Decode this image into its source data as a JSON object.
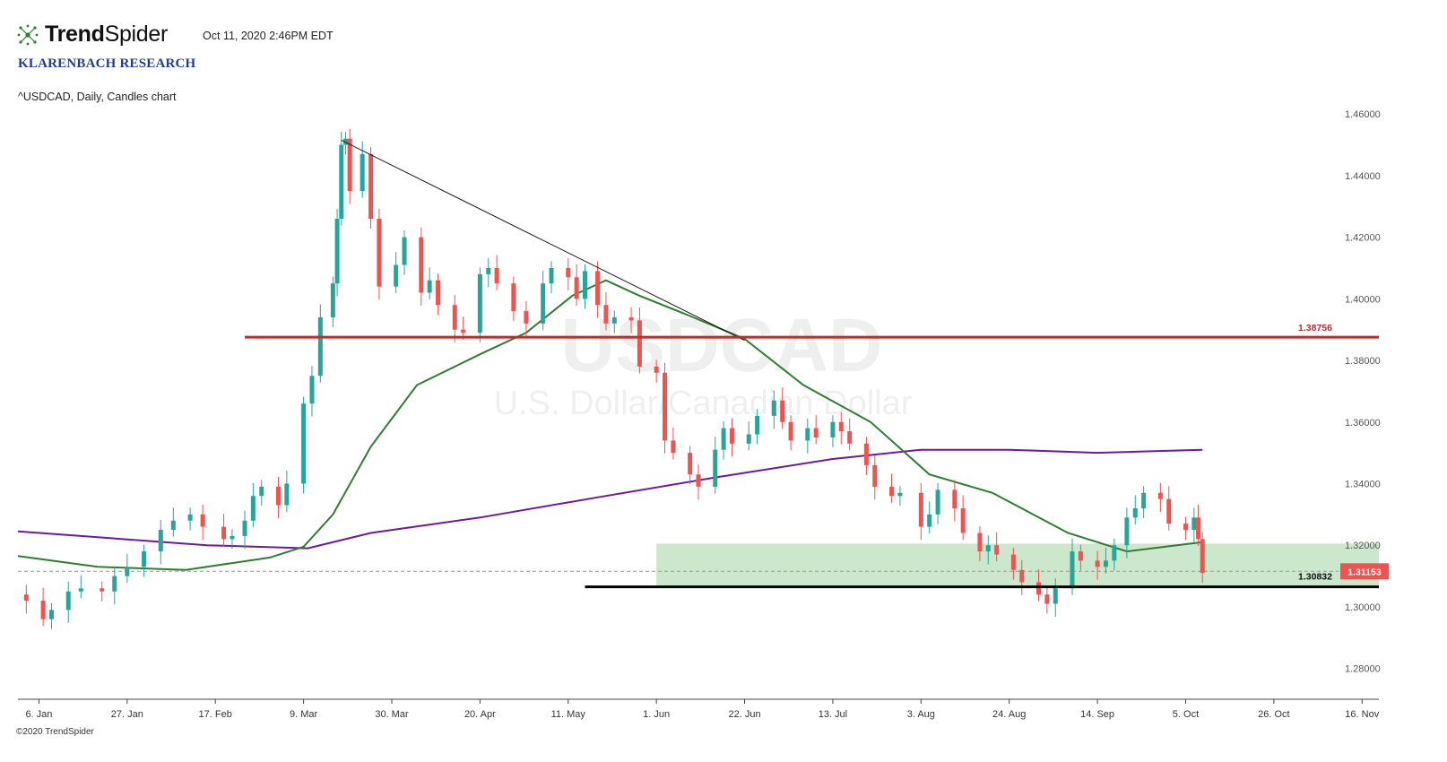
{
  "header": {
    "brand_trend": "Trend",
    "brand_spider": "Spider",
    "timestamp": "Oct 11, 2020 2:46PM EDT",
    "research": "KLARENBACH RESEARCH",
    "chart_desc": "^USDCAD, Daily, Candles chart"
  },
  "watermark": {
    "symbol": "USDCAD",
    "name": "U.S. Dollar/Canadian Dollar"
  },
  "footer": {
    "copyright": "©2020 TrendSpider"
  },
  "colors": {
    "up": "#26a69a",
    "down": "#ef5350",
    "ma_green": "#2e7d32",
    "ma_purple": "#6a1b9a",
    "resistance": "#c62828",
    "support": "#000000",
    "zone": "#c8e6c9",
    "price_tag": "#ef5350",
    "brand_icon": "#2e7d32"
  },
  "chart_data": {
    "type": "candlestick",
    "symbol": "^USDCAD",
    "timeframe": "Daily",
    "ylim": [
      1.27,
      1.465
    ],
    "xlim": [
      "2020-01-01",
      "2020-11-20"
    ],
    "y_ticks": [
      "1.46000",
      "1.44000",
      "1.42000",
      "1.40000",
      "1.38000",
      "1.36000",
      "1.34000",
      "1.32000",
      "1.30000",
      "1.28000"
    ],
    "x_ticks": [
      {
        "label": "6. Jan",
        "date": "2020-01-06"
      },
      {
        "label": "27. Jan",
        "date": "2020-01-27"
      },
      {
        "label": "17. Feb",
        "date": "2020-02-17"
      },
      {
        "label": "9. Mar",
        "date": "2020-03-09"
      },
      {
        "label": "30. Mar",
        "date": "2020-03-30"
      },
      {
        "label": "20. Apr",
        "date": "2020-04-20"
      },
      {
        "label": "11. May",
        "date": "2020-05-11"
      },
      {
        "label": "1. Jun",
        "date": "2020-06-01"
      },
      {
        "label": "22. Jun",
        "date": "2020-06-22"
      },
      {
        "label": "13. Jul",
        "date": "2020-07-13"
      },
      {
        "label": "3. Aug",
        "date": "2020-08-03"
      },
      {
        "label": "24. Aug",
        "date": "2020-08-24"
      },
      {
        "label": "14. Sep",
        "date": "2020-09-14"
      },
      {
        "label": "5. Oct",
        "date": "2020-10-05"
      },
      {
        "label": "26. Oct",
        "date": "2020-10-26"
      },
      {
        "label": "16. Nov",
        "date": "2020-11-16"
      }
    ],
    "close_series": [
      [
        "2020-01-01",
        1.304
      ],
      [
        "2020-01-03",
        1.302
      ],
      [
        "2020-01-07",
        1.296
      ],
      [
        "2020-01-09",
        1.299
      ],
      [
        "2020-01-13",
        1.305
      ],
      [
        "2020-01-16",
        1.306
      ],
      [
        "2020-01-21",
        1.305
      ],
      [
        "2020-01-24",
        1.31
      ],
      [
        "2020-01-27",
        1.313
      ],
      [
        "2020-01-31",
        1.318
      ],
      [
        "2020-02-04",
        1.325
      ],
      [
        "2020-02-07",
        1.328
      ],
      [
        "2020-02-11",
        1.33
      ],
      [
        "2020-02-14",
        1.326
      ],
      [
        "2020-02-19",
        1.322
      ],
      [
        "2020-02-21",
        1.323
      ],
      [
        "2020-02-24",
        1.328
      ],
      [
        "2020-02-26",
        1.336
      ],
      [
        "2020-02-28",
        1.339
      ],
      [
        "2020-03-03",
        1.333
      ],
      [
        "2020-03-05",
        1.34
      ],
      [
        "2020-03-09",
        1.366
      ],
      [
        "2020-03-11",
        1.375
      ],
      [
        "2020-03-13",
        1.394
      ],
      [
        "2020-03-16",
        1.405
      ],
      [
        "2020-03-17",
        1.426
      ],
      [
        "2020-03-18",
        1.45
      ],
      [
        "2020-03-19",
        1.452
      ],
      [
        "2020-03-20",
        1.435
      ],
      [
        "2020-03-23",
        1.447
      ],
      [
        "2020-03-25",
        1.426
      ],
      [
        "2020-03-27",
        1.404
      ],
      [
        "2020-03-31",
        1.411
      ],
      [
        "2020-04-02",
        1.42
      ],
      [
        "2020-04-06",
        1.402
      ],
      [
        "2020-04-08",
        1.406
      ],
      [
        "2020-04-10",
        1.398
      ],
      [
        "2020-04-14",
        1.39
      ],
      [
        "2020-04-16",
        1.389
      ],
      [
        "2020-04-20",
        1.408
      ],
      [
        "2020-04-22",
        1.41
      ],
      [
        "2020-04-24",
        1.405
      ],
      [
        "2020-04-28",
        1.396
      ],
      [
        "2020-05-01",
        1.392
      ],
      [
        "2020-05-05",
        1.405
      ],
      [
        "2020-05-07",
        1.41
      ],
      [
        "2020-05-11",
        1.407
      ],
      [
        "2020-05-13",
        1.4
      ],
      [
        "2020-05-15",
        1.409
      ],
      [
        "2020-05-18",
        1.398
      ],
      [
        "2020-05-20",
        1.392
      ],
      [
        "2020-05-22",
        1.394
      ],
      [
        "2020-05-26",
        1.393
      ],
      [
        "2020-05-28",
        1.378
      ],
      [
        "2020-06-01",
        1.376
      ],
      [
        "2020-06-03",
        1.354
      ],
      [
        "2020-06-05",
        1.35
      ],
      [
        "2020-06-09",
        1.343
      ],
      [
        "2020-06-11",
        1.339
      ],
      [
        "2020-06-15",
        1.351
      ],
      [
        "2020-06-17",
        1.358
      ],
      [
        "2020-06-19",
        1.353
      ],
      [
        "2020-06-23",
        1.356
      ],
      [
        "2020-06-25",
        1.362
      ],
      [
        "2020-06-29",
        1.367
      ],
      [
        "2020-07-01",
        1.36
      ],
      [
        "2020-07-03",
        1.354
      ],
      [
        "2020-07-07",
        1.358
      ],
      [
        "2020-07-09",
        1.355
      ],
      [
        "2020-07-13",
        1.36
      ],
      [
        "2020-07-15",
        1.357
      ],
      [
        "2020-07-17",
        1.353
      ],
      [
        "2020-07-21",
        1.346
      ],
      [
        "2020-07-23",
        1.339
      ],
      [
        "2020-07-27",
        1.336
      ],
      [
        "2020-07-29",
        1.337
      ],
      [
        "2020-08-03",
        1.326
      ],
      [
        "2020-08-05",
        1.33
      ],
      [
        "2020-08-07",
        1.338
      ],
      [
        "2020-08-11",
        1.332
      ],
      [
        "2020-08-13",
        1.324
      ],
      [
        "2020-08-17",
        1.318
      ],
      [
        "2020-08-19",
        1.32
      ],
      [
        "2020-08-21",
        1.317
      ],
      [
        "2020-08-25",
        1.312
      ],
      [
        "2020-08-27",
        1.308
      ],
      [
        "2020-08-31",
        1.304
      ],
      [
        "2020-09-02",
        1.301
      ],
      [
        "2020-09-04",
        1.306
      ],
      [
        "2020-09-08",
        1.318
      ],
      [
        "2020-09-10",
        1.315
      ],
      [
        "2020-09-14",
        1.313
      ],
      [
        "2020-09-16",
        1.315
      ],
      [
        "2020-09-18",
        1.32
      ],
      [
        "2020-09-21",
        1.329
      ],
      [
        "2020-09-23",
        1.332
      ],
      [
        "2020-09-25",
        1.337
      ],
      [
        "2020-09-29",
        1.335
      ],
      [
        "2020-10-01",
        1.327
      ],
      [
        "2020-10-05",
        1.325
      ],
      [
        "2020-10-07",
        1.329
      ],
      [
        "2020-10-08",
        1.322
      ],
      [
        "2020-10-09",
        1.311
      ]
    ],
    "ma_green": [
      [
        "2020-01-01",
        1.3165
      ],
      [
        "2020-01-20",
        1.313
      ],
      [
        "2020-02-10",
        1.312
      ],
      [
        "2020-03-01",
        1.316
      ],
      [
        "2020-03-09",
        1.3195
      ],
      [
        "2020-03-16",
        1.33
      ],
      [
        "2020-03-25",
        1.352
      ],
      [
        "2020-04-05",
        1.372
      ],
      [
        "2020-04-20",
        1.382
      ],
      [
        "2020-05-01",
        1.389
      ],
      [
        "2020-05-12",
        1.401
      ],
      [
        "2020-05-20",
        1.406
      ],
      [
        "2020-05-28",
        1.401
      ],
      [
        "2020-06-08",
        1.395
      ],
      [
        "2020-06-22",
        1.387
      ],
      [
        "2020-07-06",
        1.372
      ],
      [
        "2020-07-22",
        1.36
      ],
      [
        "2020-08-05",
        1.343
      ],
      [
        "2020-08-20",
        1.337
      ],
      [
        "2020-09-07",
        1.324
      ],
      [
        "2020-09-21",
        1.318
      ],
      [
        "2020-10-09",
        1.321
      ]
    ],
    "ma_purple": [
      [
        "2020-01-01",
        1.3245
      ],
      [
        "2020-02-15",
        1.32
      ],
      [
        "2020-03-10",
        1.319
      ],
      [
        "2020-03-25",
        1.324
      ],
      [
        "2020-04-20",
        1.329
      ],
      [
        "2020-05-20",
        1.336
      ],
      [
        "2020-06-15",
        1.342
      ],
      [
        "2020-07-13",
        1.348
      ],
      [
        "2020-08-03",
        1.351
      ],
      [
        "2020-08-24",
        1.351
      ],
      [
        "2020-09-14",
        1.35
      ],
      [
        "2020-10-09",
        1.351
      ]
    ],
    "trendline": {
      "from": [
        "2020-03-18",
        1.4515
      ],
      "to": [
        "2020-06-22",
        1.3865
      ]
    },
    "resistance": {
      "value": 1.38756,
      "label": "1.38756",
      "from": "2020-02-24"
    },
    "support": {
      "value": 1.30832,
      "label": "1.30832",
      "from": "2020-05-15"
    },
    "demand_zone": {
      "from": "2020-06-01",
      "low": 1.3065,
      "high": 1.3205
    },
    "last_price": {
      "value": 1.31153,
      "label": "1.31153"
    }
  }
}
